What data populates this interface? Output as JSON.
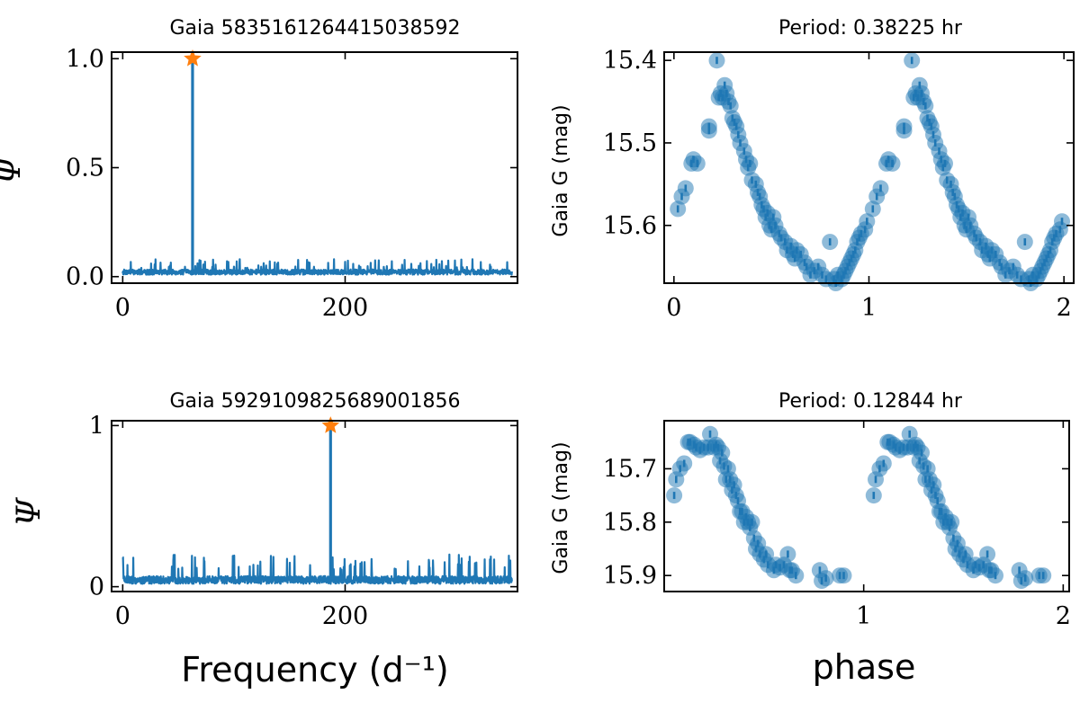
{
  "colors": {
    "series": "#1f77b4",
    "peak_marker": "#ff7f0e",
    "axes": "#000000"
  },
  "chart_data": [
    {
      "type": "line",
      "name": "periodogram-top",
      "title": "Gaia 5835161264415038592",
      "xlabel": "",
      "ylabel": "Ψ",
      "xlim": [
        -10,
        355
      ],
      "ylim": [
        -0.03,
        1.03
      ],
      "xticks": [
        0,
        200
      ],
      "xtick_labels": [
        "0",
        "200"
      ],
      "yticks": [
        0.0,
        0.5,
        1.0
      ],
      "ytick_labels": [
        "0.0",
        "0.5",
        "1.0"
      ],
      "noise_level": 0.03,
      "noise_max": 0.08,
      "noise_seed": 7,
      "peak": {
        "x": 62.8,
        "y": 1.0,
        "marker": "star"
      },
      "x_range": [
        0,
        350
      ],
      "grid": false
    },
    {
      "type": "scatter",
      "name": "lightcurve-top",
      "title": "Period:  0.38225 hr",
      "xlabel": "",
      "ylabel": "Gaia G (mag)",
      "xlim": [
        -0.05,
        2.05
      ],
      "ylim": [
        15.67,
        15.39
      ],
      "y_inverted": true,
      "xticks": [
        0,
        1,
        2
      ],
      "xtick_labels": [
        "0",
        "1",
        "2"
      ],
      "yticks": [
        15.4,
        15.5,
        15.6
      ],
      "ytick_labels": [
        "15.4",
        "15.5",
        "15.6"
      ],
      "phases": [
        0.02,
        0.04,
        0.06,
        0.09,
        0.1,
        0.12,
        0.18,
        0.18,
        0.22,
        0.23,
        0.24,
        0.25,
        0.26,
        0.27,
        0.28,
        0.29,
        0.3,
        0.31,
        0.32,
        0.33,
        0.34,
        0.36,
        0.37,
        0.38,
        0.39,
        0.4,
        0.42,
        0.43,
        0.44,
        0.45,
        0.46,
        0.47,
        0.48,
        0.49,
        0.5,
        0.51,
        0.52,
        0.54,
        0.55,
        0.57,
        0.58,
        0.6,
        0.61,
        0.62,
        0.63,
        0.65,
        0.67,
        0.68,
        0.7,
        0.72,
        0.74,
        0.76,
        0.78,
        0.8,
        0.82,
        0.83,
        0.84,
        0.86,
        0.87,
        0.88,
        0.89,
        0.9,
        0.91,
        0.92,
        0.93,
        0.94,
        0.95,
        0.96,
        0.98,
        0.99
      ],
      "mags": [
        15.58,
        15.565,
        15.555,
        15.525,
        15.52,
        15.525,
        15.48,
        15.485,
        15.4,
        15.445,
        15.44,
        15.445,
        15.43,
        15.44,
        15.45,
        15.455,
        15.47,
        15.475,
        15.48,
        15.49,
        15.5,
        15.51,
        15.52,
        15.53,
        15.525,
        15.545,
        15.55,
        15.56,
        15.565,
        15.575,
        15.58,
        15.59,
        15.585,
        15.6,
        15.605,
        15.59,
        15.6,
        15.61,
        15.615,
        15.62,
        15.63,
        15.625,
        15.635,
        15.64,
        15.63,
        15.635,
        15.645,
        15.65,
        15.66,
        15.655,
        15.65,
        15.66,
        15.665,
        15.62,
        15.665,
        15.67,
        15.66,
        15.665,
        15.66,
        15.655,
        15.65,
        15.645,
        15.64,
        15.635,
        15.63,
        15.62,
        15.615,
        15.61,
        15.605,
        15.595
      ],
      "repeat_period": 1,
      "grid": false
    },
    {
      "type": "line",
      "name": "periodogram-bottom",
      "title": "Gaia 5929109825689001856",
      "xlabel": "Frequency (d⁻¹)",
      "ylabel": "Ψ",
      "xlim": [
        -10,
        355
      ],
      "ylim": [
        -0.03,
        1.03
      ],
      "xticks": [
        0,
        200
      ],
      "xtick_labels": [
        "0",
        "200"
      ],
      "yticks": [
        0,
        1
      ],
      "ytick_labels": [
        "0",
        "1"
      ],
      "noise_level": 0.06,
      "noise_max": 0.2,
      "noise_seed": 19,
      "peak": {
        "x": 186.9,
        "y": 1.0,
        "marker": "star"
      },
      "x_range": [
        0,
        350
      ],
      "grid": false
    },
    {
      "type": "scatter",
      "name": "lightcurve-bottom",
      "title": "Period:  0.12844 hr",
      "xlabel": "phase",
      "ylabel": "Gaia G (mag)",
      "xlim": [
        0.0,
        2.03
      ],
      "ylim": [
        15.93,
        15.61
      ],
      "y_inverted": true,
      "xticks": [
        1,
        2
      ],
      "xtick_labels": [
        "1",
        "2"
      ],
      "yticks": [
        15.7,
        15.8,
        15.9
      ],
      "ytick_labels": [
        "15.7",
        "15.8",
        "15.9"
      ],
      "phases": [
        0.05,
        0.06,
        0.08,
        0.1,
        0.12,
        0.13,
        0.15,
        0.16,
        0.18,
        0.2,
        0.22,
        0.23,
        0.25,
        0.26,
        0.27,
        0.28,
        0.29,
        0.3,
        0.31,
        0.32,
        0.33,
        0.34,
        0.35,
        0.36,
        0.37,
        0.38,
        0.39,
        0.4,
        0.41,
        0.42,
        0.43,
        0.44,
        0.45,
        0.46,
        0.47,
        0.48,
        0.5,
        0.51,
        0.52,
        0.55,
        0.56,
        0.58,
        0.6,
        0.62,
        0.63,
        0.64,
        0.66,
        0.78,
        0.79,
        0.81,
        0.88,
        0.9
      ],
      "mags": [
        15.75,
        15.72,
        15.7,
        15.69,
        15.65,
        15.65,
        15.655,
        15.66,
        15.665,
        15.66,
        15.66,
        15.635,
        15.66,
        15.655,
        15.66,
        15.685,
        15.67,
        15.695,
        15.72,
        15.7,
        15.72,
        15.74,
        15.73,
        15.75,
        15.76,
        15.78,
        15.78,
        15.8,
        15.79,
        15.8,
        15.81,
        15.8,
        15.83,
        15.85,
        15.84,
        15.86,
        15.87,
        15.86,
        15.88,
        15.89,
        15.88,
        15.885,
        15.88,
        15.86,
        15.89,
        15.89,
        15.9,
        15.89,
        15.91,
        15.905,
        15.9,
        15.9
      ],
      "repeat_period": 1,
      "grid": false
    }
  ]
}
